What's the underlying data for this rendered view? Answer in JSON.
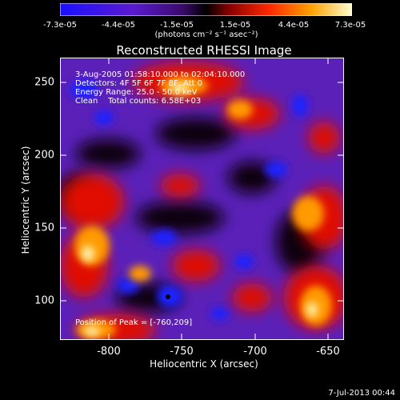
{
  "colorbar": {
    "ticks": [
      "-7.3e-05",
      "-4.4e-05",
      "-1.5e-05",
      "1.5e-05",
      "4.4e-05",
      "7.3e-05"
    ],
    "units": "(photons cm⁻² s⁻¹ asec⁻²)"
  },
  "title": "Reconstructed RHESSI Image",
  "info": {
    "time_range": "3-Aug-2005 01:58:10.000 to 02:04:10.000",
    "detectors": "Detectors: 4F 5F 6F 7F 8F, Att 0",
    "energy": "Energy Range: 25.0 - 50.0 keV",
    "clean": "Clean    Total counts: 6.58E+03"
  },
  "peak": "Position of Peak = [-760,209]",
  "axes": {
    "xlabel": "Heliocentric X (arcsec)",
    "ylabel": "Heliocentric Y (arcsec)",
    "xticks": [
      "-800",
      "-750",
      "-700",
      "-650"
    ],
    "yticks": [
      "250",
      "200",
      "150",
      "100"
    ]
  },
  "timestamp": "7-Jul-2013 00:44"
}
